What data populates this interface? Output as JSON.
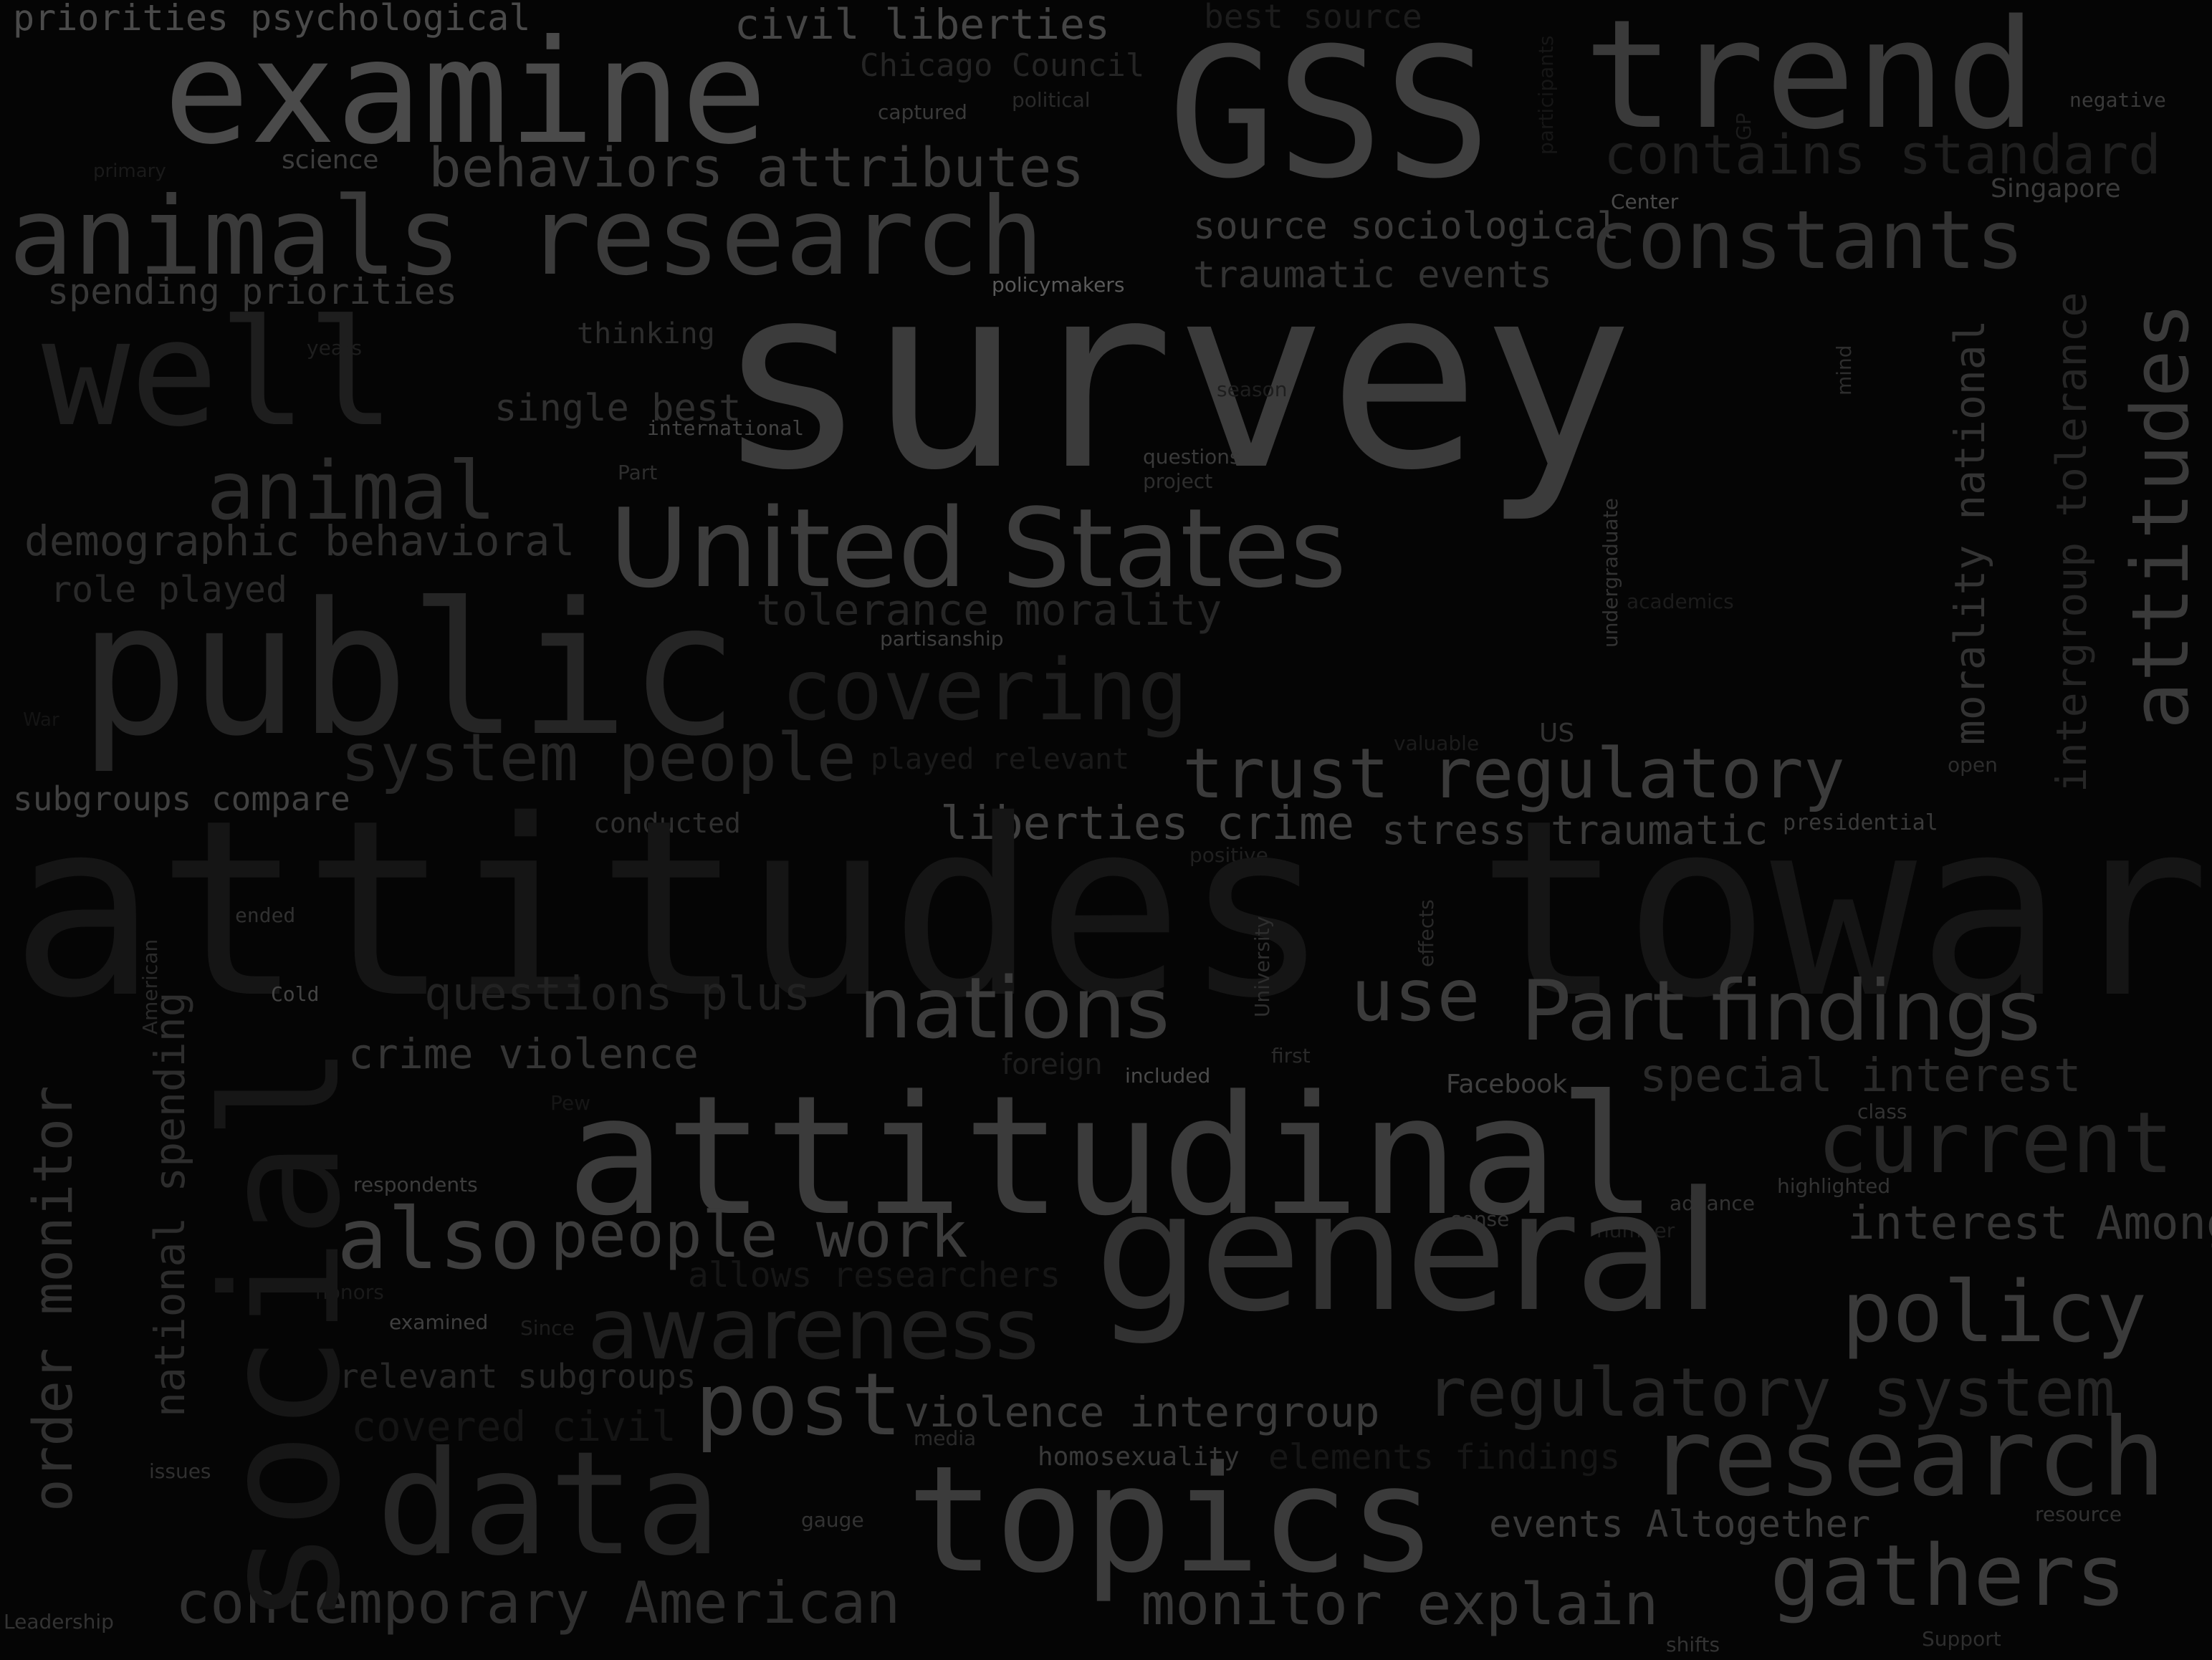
{
  "words": [
    {
      "text": "priorities psychological",
      "color": "#4a4a4a"
    },
    {
      "text": "examine",
      "color": "#4a4a4a"
    },
    {
      "text": "GSS",
      "color": "#3f3f3f"
    },
    {
      "text": "trend",
      "color": "#3a3a3a"
    },
    {
      "text": "civil liberties",
      "color": "#454545"
    },
    {
      "text": "best source",
      "color": "#1c1c1c"
    },
    {
      "text": "Chicago Council",
      "color": "#252525"
    },
    {
      "text": "political",
      "color": "#2a2a2a"
    },
    {
      "text": "captured",
      "color": "#3a3a3a"
    },
    {
      "text": "negative",
      "color": "#3a3a3a"
    },
    {
      "text": "behaviors attributes",
      "color": "#3b3b3b"
    },
    {
      "text": "science",
      "color": "#3d3d3d"
    },
    {
      "text": "primary",
      "color": "#1a1a1a"
    },
    {
      "text": "contains standard",
      "color": "#1f1f1f"
    },
    {
      "text": "Singapore",
      "color": "#3b3b3b"
    },
    {
      "text": "Center",
      "color": "#4a4a4a"
    },
    {
      "text": "animals research",
      "color": "#3a3a3a"
    },
    {
      "text": "source sociological",
      "color": "#3b3b3b"
    },
    {
      "text": "constants",
      "color": "#333333"
    },
    {
      "text": "traumatic events",
      "color": "#333333"
    },
    {
      "text": "spending priorities",
      "color": "#383838"
    },
    {
      "text": "policymakers",
      "color": "#595959"
    },
    {
      "text": "survey",
      "color": "#3b3b3b"
    },
    {
      "text": "well",
      "color": "#1e1e1e"
    },
    {
      "text": "thinking",
      "color": "#2d2d2d"
    },
    {
      "text": "years",
      "color": "#1e1e1e"
    },
    {
      "text": "single best",
      "color": "#2f2f2f"
    },
    {
      "text": "international",
      "color": "#444444"
    },
    {
      "text": "season",
      "color": "#1e1e1e"
    },
    {
      "text": "questions",
      "color": "#3a3a3a"
    },
    {
      "text": "project",
      "color": "#2e2e2e"
    },
    {
      "text": "Part",
      "color": "#2e2e2e"
    },
    {
      "text": "animal",
      "color": "#2d2d2d"
    },
    {
      "text": "United States",
      "color": "#3d3d3d"
    },
    {
      "text": "demographic behavioral",
      "color": "#303030"
    },
    {
      "text": "role played",
      "color": "#2a2a2a"
    },
    {
      "text": "public",
      "color": "#252525"
    },
    {
      "text": "tolerance morality",
      "color": "#262626"
    },
    {
      "text": "partisanship",
      "color": "#3f3f3f"
    },
    {
      "text": "academics",
      "color": "#1c1c1c"
    },
    {
      "text": "covering",
      "color": "#1e1e1e"
    },
    {
      "text": "system people",
      "color": "#262626"
    },
    {
      "text": "played relevant",
      "color": "#1a1a1a"
    },
    {
      "text": "valuable",
      "color": "#1c1c1c"
    },
    {
      "text": "US",
      "color": "#333333"
    },
    {
      "text": "trust regulatory",
      "color": "#3b3b3b"
    },
    {
      "text": "open",
      "color": "#2d2d2d"
    },
    {
      "text": "War",
      "color": "#141414"
    },
    {
      "text": "subgroups compare",
      "color": "#414141"
    },
    {
      "text": "conducted",
      "color": "#303030"
    },
    {
      "text": "liberties crime",
      "color": "#404040"
    },
    {
      "text": "stress traumatic",
      "color": "#3b3b3b"
    },
    {
      "text": "presidential",
      "color": "#3a3a3a"
    },
    {
      "text": "positive",
      "color": "#202020"
    },
    {
      "text": "attitudes towards",
      "color": "#151515"
    },
    {
      "text": "ended",
      "color": "#303030"
    },
    {
      "text": "Cold",
      "color": "#444444"
    },
    {
      "text": "questions plus",
      "color": "#222222"
    },
    {
      "text": "nations",
      "color": "#3b3b3b"
    },
    {
      "text": "use",
      "color": "#3b3b3b"
    },
    {
      "text": "Part findings",
      "color": "#383838"
    },
    {
      "text": "crime violence",
      "color": "#353535"
    },
    {
      "text": "foreign",
      "color": "#1e1e1e"
    },
    {
      "text": "first",
      "color": "#2a2a2a"
    },
    {
      "text": "included",
      "color": "#4a4a4a"
    },
    {
      "text": "Facebook",
      "color": "#404040"
    },
    {
      "text": "special interest",
      "color": "#2a2a2a"
    },
    {
      "text": "Pew",
      "color": "#161616"
    },
    {
      "text": "class",
      "color": "#333333"
    },
    {
      "text": "attitudinal",
      "color": "#3b3b3b"
    },
    {
      "text": "current",
      "color": "#262626"
    },
    {
      "text": "respondents",
      "color": "#3d3d3d"
    },
    {
      "text": "highlighted",
      "color": "#333333"
    },
    {
      "text": "advance",
      "color": "#333333"
    },
    {
      "text": "sense",
      "color": "#333333"
    },
    {
      "text": "number",
      "color": "#1e1e1e"
    },
    {
      "text": "interest Among",
      "color": "#363636"
    },
    {
      "text": "also",
      "color": "#3d3d3d"
    },
    {
      "text": "people work",
      "color": "#3b3b3b"
    },
    {
      "text": "general",
      "color": "#323232"
    },
    {
      "text": "allows researchers",
      "color": "#161616"
    },
    {
      "text": "honors",
      "color": "#1a1a1a"
    },
    {
      "text": "awareness",
      "color": "#202020"
    },
    {
      "text": "policy",
      "color": "#3a3a3a"
    },
    {
      "text": "examined",
      "color": "#404040"
    },
    {
      "text": "Since",
      "color": "#1e1e1e"
    },
    {
      "text": "relevant subgroups",
      "color": "#292929"
    },
    {
      "text": "regulatory system",
      "color": "#262626"
    },
    {
      "text": "post",
      "color": "#3d3d3d"
    },
    {
      "text": "violence intergroup",
      "color": "#3b3b3b"
    },
    {
      "text": "covered civil",
      "color": "#151515"
    },
    {
      "text": "media",
      "color": "#2a2a2a"
    },
    {
      "text": "homosexuality",
      "color": "#3a3a3a"
    },
    {
      "text": "elements findings",
      "color": "#161616"
    },
    {
      "text": "research",
      "color": "#333333"
    },
    {
      "text": "issues",
      "color": "#303030"
    },
    {
      "text": "data",
      "color": "#252525"
    },
    {
      "text": "topics",
      "color": "#3b3b3b"
    },
    {
      "text": "events Altogether",
      "color": "#3b3b3b"
    },
    {
      "text": "gauge",
      "color": "#333333"
    },
    {
      "text": "resource",
      "color": "#333333"
    },
    {
      "text": "gathers",
      "color": "#3b3b3b"
    },
    {
      "text": "contemporary American",
      "color": "#303030"
    },
    {
      "text": "monitor explain",
      "color": "#383838"
    },
    {
      "text": "Leadership",
      "color": "#333333"
    },
    {
      "text": "shifts",
      "color": "#333333"
    },
    {
      "text": "Support",
      "color": "#2e2e2e"
    },
    {
      "text": "order monitor",
      "color": "#303030"
    },
    {
      "text": "national spending",
      "color": "#2d2d2d"
    },
    {
      "text": "social",
      "color": "#161616"
    },
    {
      "text": "American",
      "color": "#2a2a2a"
    },
    {
      "text": "University",
      "color": "#2e2e2e"
    },
    {
      "text": "effects",
      "color": "#2a2a2a"
    },
    {
      "text": "undergraduate",
      "color": "#333333"
    },
    {
      "text": "mind",
      "color": "#2d2d2d"
    },
    {
      "text": "morality national",
      "color": "#333333"
    },
    {
      "text": "intergroup tolerance",
      "color": "#262626"
    },
    {
      "text": "attitudes",
      "color": "#3a3a3a"
    },
    {
      "text": "GP",
      "color": "#1c1c1c"
    },
    {
      "text": "participants",
      "color": "#161616"
    }
  ]
}
